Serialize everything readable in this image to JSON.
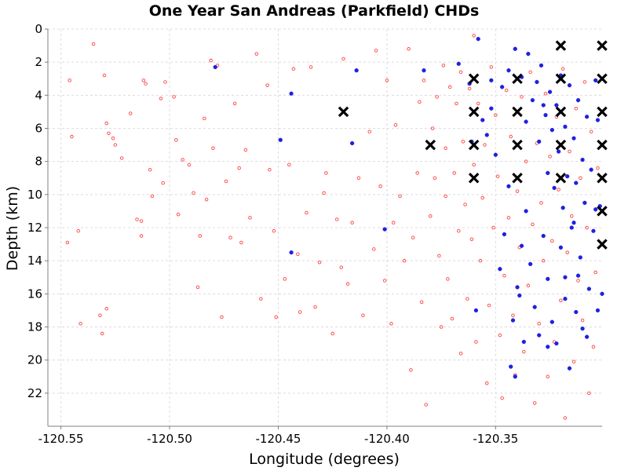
{
  "chart_data": {
    "type": "scatter",
    "title": "One Year San Andreas (Parkfield) CHDs",
    "xlabel": "Longitude (degrees)",
    "ylabel": "Depth (km)",
    "xlim": [
      -120.556,
      -120.301
    ],
    "ylim": [
      0,
      24
    ],
    "y_inverted": true,
    "grid": true,
    "xticks": [
      -120.55,
      -120.5,
      -120.45,
      -120.4,
      -120.35
    ],
    "xtick_labels": [
      "-120.55",
      "-120.50",
      "-120.45",
      "-120.40",
      "-120.35"
    ],
    "yticks": [
      0,
      2,
      4,
      6,
      8,
      10,
      12,
      14,
      16,
      18,
      20,
      22
    ],
    "ytick_labels": [
      "0",
      "2",
      "4",
      "6",
      "8",
      "10",
      "12",
      "14",
      "16",
      "18",
      "20",
      "22"
    ],
    "series": [
      {
        "marker": "open-circle",
        "color": "#ff4040",
        "points": [
          [
            -120.546,
            3.1
          ],
          [
            -120.545,
            6.5
          ],
          [
            -120.542,
            12.2
          ],
          [
            -120.547,
            12.9
          ],
          [
            -120.541,
            17.8
          ],
          [
            -120.535,
            0.9
          ],
          [
            -120.53,
            2.8
          ],
          [
            -120.529,
            5.7
          ],
          [
            -120.528,
            6.3
          ],
          [
            -120.529,
            16.9
          ],
          [
            -120.532,
            17.3
          ],
          [
            -120.531,
            18.4
          ],
          [
            -120.526,
            6.6
          ],
          [
            -120.525,
            7.0
          ],
          [
            -120.522,
            7.8
          ],
          [
            -120.518,
            5.1
          ],
          [
            -120.515,
            11.5
          ],
          [
            -120.513,
            12.5
          ],
          [
            -120.513,
            11.6
          ],
          [
            -120.512,
            3.1
          ],
          [
            -120.511,
            3.3
          ],
          [
            -120.509,
            8.5
          ],
          [
            -120.508,
            10.1
          ],
          [
            -120.504,
            4.2
          ],
          [
            -120.503,
            9.3
          ],
          [
            -120.502,
            3.2
          ],
          [
            -120.498,
            4.1
          ],
          [
            -120.497,
            6.7
          ],
          [
            -120.496,
            11.2
          ],
          [
            -120.494,
            7.9
          ],
          [
            -120.491,
            8.2
          ],
          [
            -120.489,
            9.9
          ],
          [
            -120.487,
            15.6
          ],
          [
            -120.486,
            12.5
          ],
          [
            -120.484,
            5.4
          ],
          [
            -120.483,
            10.3
          ],
          [
            -120.481,
            1.9
          ],
          [
            -120.48,
            7.2
          ],
          [
            -120.478,
            2.2
          ],
          [
            -120.476,
            17.4
          ],
          [
            -120.474,
            9.2
          ],
          [
            -120.472,
            12.6
          ],
          [
            -120.47,
            4.5
          ],
          [
            -120.468,
            8.4
          ],
          [
            -120.467,
            12.9
          ],
          [
            -120.465,
            7.3
          ],
          [
            -120.463,
            11.4
          ],
          [
            -120.46,
            1.5
          ],
          [
            -120.458,
            16.3
          ],
          [
            -120.455,
            3.4
          ],
          [
            -120.454,
            8.5
          ],
          [
            -120.452,
            12.2
          ],
          [
            -120.451,
            17.4
          ],
          [
            -120.447,
            15.1
          ],
          [
            -120.445,
            8.2
          ],
          [
            -120.443,
            2.4
          ],
          [
            -120.441,
            13.6
          ],
          [
            -120.44,
            17.1
          ],
          [
            -120.437,
            11.1
          ],
          [
            -120.435,
            2.3
          ],
          [
            -120.433,
            16.8
          ],
          [
            -120.431,
            14.1
          ],
          [
            -120.429,
            9.9
          ],
          [
            -120.428,
            8.7
          ],
          [
            -120.425,
            18.4
          ],
          [
            -120.423,
            11.5
          ],
          [
            -120.421,
            14.4
          ],
          [
            -120.42,
            1.8
          ],
          [
            -120.418,
            15.4
          ],
          [
            -120.416,
            11.7
          ],
          [
            -120.413,
            9.0
          ],
          [
            -120.411,
            17.3
          ],
          [
            -120.408,
            6.2
          ],
          [
            -120.406,
            13.3
          ],
          [
            -120.405,
            1.3
          ],
          [
            -120.403,
            9.5
          ],
          [
            -120.401,
            15.2
          ],
          [
            -120.4,
            3.1
          ],
          [
            -120.398,
            17.8
          ],
          [
            -120.397,
            11.7
          ],
          [
            -120.396,
            5.8
          ],
          [
            -120.394,
            10.1
          ],
          [
            -120.392,
            14.0
          ],
          [
            -120.39,
            1.2
          ],
          [
            -120.389,
            20.6
          ],
          [
            -120.388,
            12.6
          ],
          [
            -120.386,
            8.7
          ],
          [
            -120.385,
            4.4
          ],
          [
            -120.384,
            16.5
          ],
          [
            -120.383,
            3.1
          ],
          [
            -120.382,
            22.7
          ],
          [
            -120.38,
            11.3
          ],
          [
            -120.379,
            6.0
          ],
          [
            -120.378,
            9.0
          ],
          [
            -120.377,
            4.1
          ],
          [
            -120.376,
            13.7
          ],
          [
            -120.375,
            18.0
          ],
          [
            -120.374,
            2.2
          ],
          [
            -120.373,
            7.2
          ],
          [
            -120.373,
            10.1
          ],
          [
            -120.372,
            15.1
          ],
          [
            -120.371,
            3.5
          ],
          [
            -120.37,
            17.5
          ],
          [
            -120.369,
            8.7
          ],
          [
            -120.368,
            4.5
          ],
          [
            -120.367,
            12.2
          ],
          [
            -120.366,
            2.6
          ],
          [
            -120.366,
            19.6
          ],
          [
            -120.365,
            6.8
          ],
          [
            -120.364,
            10.6
          ],
          [
            -120.363,
            16.3
          ],
          [
            -120.362,
            3.6
          ],
          [
            -120.361,
            12.7
          ],
          [
            -120.36,
            8.2
          ],
          [
            -120.36,
            0.4
          ],
          [
            -120.359,
            18.9
          ],
          [
            -120.358,
            4.5
          ],
          [
            -120.357,
            14.0
          ],
          [
            -120.356,
            10.2
          ],
          [
            -120.355,
            7.0
          ],
          [
            -120.354,
            21.4
          ],
          [
            -120.353,
            16.7
          ],
          [
            -120.352,
            2.3
          ],
          [
            -120.351,
            12.0
          ],
          [
            -120.35,
            5.2
          ],
          [
            -120.349,
            8.9
          ],
          [
            -120.348,
            18.5
          ],
          [
            -120.347,
            22.3
          ],
          [
            -120.346,
            14.9
          ],
          [
            -120.345,
            3.7
          ],
          [
            -120.344,
            11.4
          ],
          [
            -120.343,
            6.5
          ],
          [
            -120.342,
            17.3
          ],
          [
            -120.341,
            20.9
          ],
          [
            -120.34,
            9.8
          ],
          [
            -120.339,
            13.2
          ],
          [
            -120.338,
            4.1
          ],
          [
            -120.337,
            19.5
          ],
          [
            -120.336,
            8.0
          ],
          [
            -120.335,
            15.5
          ],
          [
            -120.334,
            2.6
          ],
          [
            -120.333,
            11.8
          ],
          [
            -120.332,
            22.6
          ],
          [
            -120.331,
            6.9
          ],
          [
            -120.33,
            17.8
          ],
          [
            -120.329,
            10.5
          ],
          [
            -120.328,
            14.0
          ],
          [
            -120.327,
            3.9
          ],
          [
            -120.326,
            21.0
          ],
          [
            -120.325,
            7.7
          ],
          [
            -120.324,
            12.8
          ],
          [
            -120.323,
            18.9
          ],
          [
            -120.322,
            5.3
          ],
          [
            -120.321,
            9.7
          ],
          [
            -120.32,
            16.4
          ],
          [
            -120.319,
            2.4
          ],
          [
            -120.318,
            23.5
          ],
          [
            -120.317,
            13.5
          ],
          [
            -120.316,
            7.4
          ],
          [
            -120.315,
            11.3
          ],
          [
            -120.314,
            20.1
          ],
          [
            -120.313,
            4.8
          ],
          [
            -120.312,
            15.2
          ],
          [
            -120.311,
            9.0
          ],
          [
            -120.31,
            17.6
          ],
          [
            -120.309,
            3.2
          ],
          [
            -120.308,
            12.0
          ],
          [
            -120.307,
            22.0
          ],
          [
            -120.306,
            6.2
          ],
          [
            -120.305,
            19.2
          ],
          [
            -120.304,
            14.7
          ],
          [
            -120.303,
            8.4
          ]
        ]
      },
      {
        "marker": "filled-circle",
        "color": "#2020e0",
        "points": [
          [
            -120.479,
            2.3
          ],
          [
            -120.444,
            3.9
          ],
          [
            -120.444,
            13.5
          ],
          [
            -120.449,
            6.7
          ],
          [
            -120.416,
            6.9
          ],
          [
            -120.414,
            2.5
          ],
          [
            -120.401,
            12.1
          ],
          [
            -120.383,
            2.5
          ],
          [
            -120.367,
            2.1
          ],
          [
            -120.358,
            0.6
          ],
          [
            -120.352,
            3.1
          ],
          [
            -120.347,
            3.5
          ],
          [
            -120.344,
            2.5
          ],
          [
            -120.341,
            1.2
          ],
          [
            -120.338,
            2.9
          ],
          [
            -120.336,
            5.6
          ],
          [
            -120.335,
            1.5
          ],
          [
            -120.333,
            4.3
          ],
          [
            -120.331,
            3.2
          ],
          [
            -120.33,
            6.8
          ],
          [
            -120.329,
            2.2
          ],
          [
            -120.327,
            5.2
          ],
          [
            -120.326,
            8.7
          ],
          [
            -120.325,
            3.8
          ],
          [
            -120.324,
            6.1
          ],
          [
            -120.323,
            9.6
          ],
          [
            -120.322,
            4.6
          ],
          [
            -120.321,
            7.4
          ],
          [
            -120.32,
            2.8
          ],
          [
            -120.319,
            10.8
          ],
          [
            -120.318,
            5.9
          ],
          [
            -120.317,
            8.9
          ],
          [
            -120.316,
            3.4
          ],
          [
            -120.315,
            12.0
          ],
          [
            -120.314,
            6.6
          ],
          [
            -120.313,
            9.3
          ],
          [
            -120.312,
            4.3
          ],
          [
            -120.311,
            13.8
          ],
          [
            -120.31,
            7.9
          ],
          [
            -120.309,
            10.5
          ],
          [
            -120.308,
            5.3
          ],
          [
            -120.307,
            15.7
          ],
          [
            -120.306,
            8.5
          ],
          [
            -120.305,
            12.2
          ],
          [
            -120.304,
            3.1
          ],
          [
            -120.303,
            17.0
          ],
          [
            -120.302,
            10.7
          ],
          [
            -120.301,
            16.0
          ],
          [
            -120.336,
            11.0
          ],
          [
            -120.334,
            14.2
          ],
          [
            -120.332,
            16.8
          ],
          [
            -120.33,
            18.5
          ],
          [
            -120.328,
            12.5
          ],
          [
            -120.326,
            15.1
          ],
          [
            -120.324,
            17.7
          ],
          [
            -120.322,
            19.0
          ],
          [
            -120.32,
            13.2
          ],
          [
            -120.318,
            16.3
          ],
          [
            -120.316,
            20.5
          ],
          [
            -120.314,
            11.7
          ],
          [
            -120.312,
            14.9
          ],
          [
            -120.31,
            18.1
          ],
          [
            -120.338,
            13.1
          ],
          [
            -120.34,
            15.6
          ],
          [
            -120.342,
            17.6
          ],
          [
            -120.344,
            9.5
          ],
          [
            -120.343,
            20.4
          ],
          [
            -120.341,
            21.0
          ],
          [
            -120.337,
            18.9
          ],
          [
            -120.339,
            16.1
          ],
          [
            -120.346,
            12.4
          ],
          [
            -120.348,
            14.5
          ],
          [
            -120.35,
            7.6
          ],
          [
            -120.352,
            4.8
          ],
          [
            -120.354,
            6.4
          ],
          [
            -120.356,
            5.5
          ],
          [
            -120.361,
            6.8
          ],
          [
            -120.359,
            17.0
          ],
          [
            -120.362,
            3.3
          ],
          [
            -120.328,
            4.6
          ],
          [
            -120.326,
            19.2
          ],
          [
            -120.318,
            15.0
          ],
          [
            -120.313,
            17.1
          ],
          [
            -120.308,
            18.6
          ],
          [
            -120.304,
            10.9
          ],
          [
            -120.303,
            5.5
          ]
        ]
      },
      {
        "marker": "x",
        "color": "#000000",
        "points": [
          [
            -120.42,
            5
          ],
          [
            -120.38,
            7
          ],
          [
            -120.36,
            3
          ],
          [
            -120.36,
            5
          ],
          [
            -120.36,
            7
          ],
          [
            -120.36,
            9
          ],
          [
            -120.34,
            3
          ],
          [
            -120.34,
            5
          ],
          [
            -120.34,
            7
          ],
          [
            -120.34,
            9
          ],
          [
            -120.32,
            1
          ],
          [
            -120.32,
            3
          ],
          [
            -120.32,
            5
          ],
          [
            -120.32,
            7
          ],
          [
            -120.32,
            9
          ],
          [
            -120.301,
            1
          ],
          [
            -120.301,
            3
          ],
          [
            -120.301,
            5
          ],
          [
            -120.301,
            7
          ],
          [
            -120.301,
            9
          ],
          [
            -120.301,
            11
          ],
          [
            -120.301,
            13
          ]
        ]
      }
    ]
  }
}
